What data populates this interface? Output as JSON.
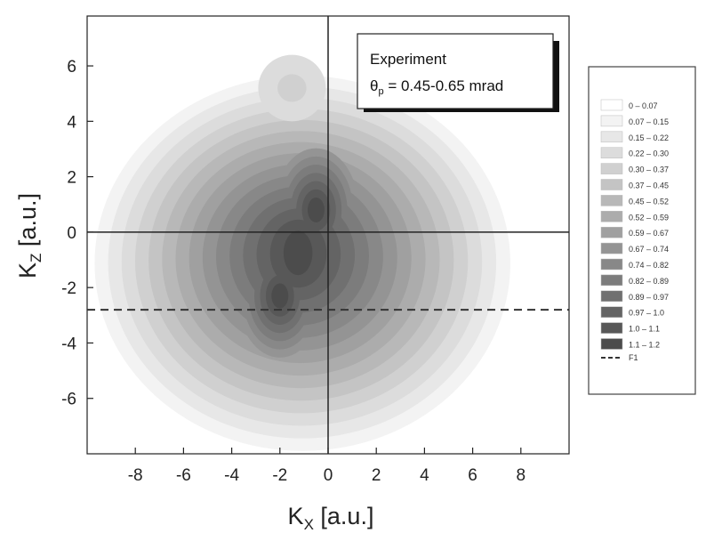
{
  "chart_data": {
    "type": "heatmap",
    "title": "",
    "xlabel": {
      "main": "K",
      "sub": "X",
      "unit": " [a.u.]"
    },
    "ylabel": {
      "main": "K",
      "sub": "Z",
      "unit": " [a.u.]"
    },
    "xlim": [
      -10,
      10
    ],
    "ylim": [
      -8,
      7.8
    ],
    "x_ticks": [
      -8,
      -6,
      -4,
      -2,
      0,
      2,
      4,
      6,
      8
    ],
    "y_ticks": [
      -6,
      -4,
      -2,
      0,
      2,
      4,
      6
    ],
    "grid": false,
    "reference_lines": {
      "x": 0,
      "y": 0
    },
    "dashed_line": {
      "name": "F1",
      "y": -2.8
    },
    "annotation": {
      "line1": "Experiment",
      "line2_symbol": "θ",
      "line2_sub": "p",
      "line2_rest": " = 0.45-0.65 mrad"
    },
    "levels": [
      {
        "label": "0 – 0.07",
        "color": "#ffffff"
      },
      {
        "label": "0.07 – 0.15",
        "color": "#f3f3f3"
      },
      {
        "label": "0.15 – 0.22",
        "color": "#e7e7e7"
      },
      {
        "label": "0.22 – 0.30",
        "color": "#dcdcdc"
      },
      {
        "label": "0.30 – 0.37",
        "color": "#d0d0d0"
      },
      {
        "label": "0.37 – 0.45",
        "color": "#c4c4c4"
      },
      {
        "label": "0.45 – 0.52",
        "color": "#b8b8b8"
      },
      {
        "label": "0.52 – 0.59",
        "color": "#acacac"
      },
      {
        "label": "0.59 – 0.67",
        "color": "#a0a0a0"
      },
      {
        "label": "0.67 – 0.74",
        "color": "#949494"
      },
      {
        "label": "0.74 – 0.82",
        "color": "#888888"
      },
      {
        "label": "0.82 – 0.89",
        "color": "#7c7c7c"
      },
      {
        "label": "0.89 – 0.97",
        "color": "#707070"
      },
      {
        "label": "0.97 – 1.0",
        "color": "#646464"
      },
      {
        "label": "1.0 – 1.1",
        "color": "#585858"
      },
      {
        "label": "1.1 – 1.2",
        "color": "#4c4c4c"
      }
    ],
    "peaks": [
      {
        "kx": -0.5,
        "kz": 0.8,
        "value": 1.15
      },
      {
        "kx": -2.0,
        "kz": -2.3,
        "value": 1.05
      },
      {
        "kx": -1.5,
        "kz": 5.2,
        "value": 0.2
      }
    ]
  }
}
